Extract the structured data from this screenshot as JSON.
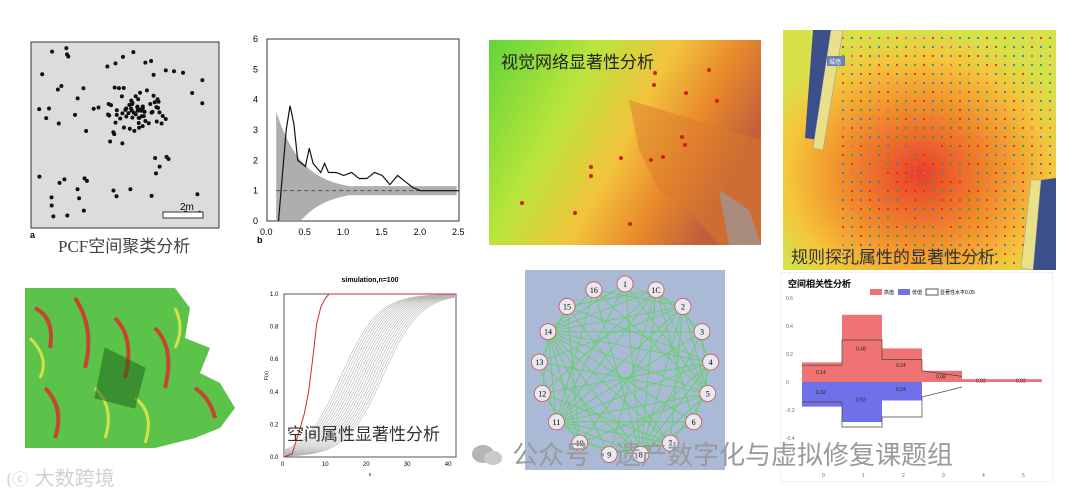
{
  "panels": {
    "pcf": {
      "label_a": "a",
      "scale": "2m",
      "caption": "PCF空间聚类分析"
    },
    "curve": {
      "label_b": "b",
      "y_ticks": [
        "0",
        "1",
        "2",
        "3",
        "4",
        "5",
        "6"
      ],
      "x_ticks": [
        "0.0",
        "0.5",
        "1.0",
        "1.5",
        "2.0",
        "2.5"
      ],
      "chart_data": {
        "type": "line",
        "title": "",
        "xlabel": "",
        "ylabel": "",
        "xlim": [
          0,
          2.5
        ],
        "ylim": [
          0,
          6
        ],
        "series": [
          {
            "x": [
              0.15,
              0.2,
              0.25,
              0.3,
              0.35,
              0.4,
              0.5,
              0.55,
              0.6,
              0.7,
              0.75,
              0.8,
              0.9,
              1.0,
              1.1,
              1.2,
              1.3,
              1.4,
              1.5,
              1.6,
              1.7,
              1.8,
              1.9,
              2.0,
              2.1,
              2.2,
              2.3,
              2.4,
              2.5
            ],
            "y": [
              0.0,
              1.5,
              3.0,
              3.8,
              3.2,
              2.0,
              1.8,
              2.4,
              1.9,
              1.6,
              1.9,
              1.6,
              1.6,
              1.5,
              1.6,
              1.4,
              1.4,
              1.6,
              1.5,
              1.2,
              1.5,
              1.3,
              1.1,
              1.0,
              1.0,
              1.0,
              1.0,
              1.0,
              1.0
            ]
          }
        ]
      }
    },
    "visual": {
      "title": "视觉网络显著性分析"
    },
    "regular": {
      "caption": "规则探孔属性的显著性分析.",
      "road_label": "城墙"
    },
    "simulation": {
      "title": "simulation,n=100",
      "ylabel": "F(x)",
      "xlabel": "x",
      "y_ticks": [
        "0.0",
        "0.2",
        "0.4",
        "0.6",
        "0.8",
        "1.0"
      ],
      "x_ticks": [
        "0",
        "10",
        "20",
        "30",
        "40"
      ],
      "caption": "空间属性显著性分析"
    },
    "network": {
      "nodes": [
        "1",
        "1C",
        "2",
        "3",
        "4",
        "5",
        "6",
        "7",
        "8",
        "9",
        "10",
        "11",
        "12",
        "13",
        "14",
        "15",
        "16"
      ]
    },
    "barchart": {
      "title": "空间相关性分析",
      "legend": [
        "高值",
        "低值",
        "显著性水平0.05"
      ],
      "x_ticks": [
        "0",
        "1",
        "2",
        "3",
        "4",
        "5"
      ],
      "y_ticks": [
        "0.6",
        "0.4",
        "0.2",
        "0",
        "-0.2",
        "-0.4"
      ],
      "labels_pos": [
        "0.14",
        "0.48",
        "0.24",
        "0.08",
        "0.02",
        "0.02"
      ],
      "labels_neg": [
        "0.32",
        "0.52",
        "0.24"
      ]
    }
  },
  "watermark": {
    "brand": "公众号 · 遗产数字化与虚拟修复课题组",
    "corner": "大数跨境"
  }
}
